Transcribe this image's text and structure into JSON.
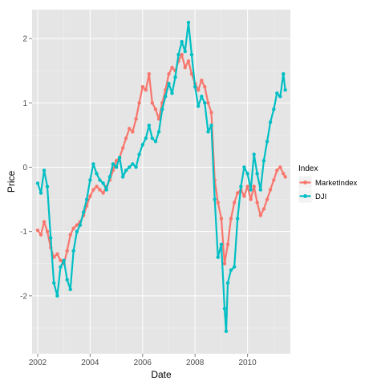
{
  "chart_data": {
    "type": "line",
    "x_type": "date",
    "xlabel": "Date",
    "ylabel": "Price",
    "xlim": [
      "2001-10-15",
      "2011-08-20"
    ],
    "ylim": [
      -2.9,
      2.45
    ],
    "x_ticks": [
      {
        "value": "2002-01-01",
        "label": "2002"
      },
      {
        "value": "2004-01-01",
        "label": "2004"
      },
      {
        "value": "2006-01-01",
        "label": "2006"
      },
      {
        "value": "2008-01-01",
        "label": "2008"
      },
      {
        "value": "2010-01-01",
        "label": "2010"
      }
    ],
    "y_ticks": [
      {
        "value": -2,
        "label": "-2"
      },
      {
        "value": -1,
        "label": "-1"
      },
      {
        "value": 0,
        "label": "0"
      },
      {
        "value": 1,
        "label": "1"
      },
      {
        "value": 2,
        "label": "2"
      }
    ],
    "grid": true,
    "markers": true,
    "legend": {
      "title": "Index",
      "position": "right"
    },
    "series": [
      {
        "name": "MarketIndex",
        "color": "#F8766D",
        "points": [
          [
            "2002-01-01",
            -0.98
          ],
          [
            "2002-02-15",
            -1.05
          ],
          [
            "2002-04-01",
            -0.85
          ],
          [
            "2002-05-15",
            -1.0
          ],
          [
            "2002-07-01",
            -1.25
          ],
          [
            "2002-08-15",
            -1.4
          ],
          [
            "2002-10-01",
            -1.35
          ],
          [
            "2002-11-15",
            -1.45
          ],
          [
            "2003-01-01",
            -1.5
          ],
          [
            "2003-02-15",
            -1.3
          ],
          [
            "2003-04-01",
            -1.05
          ],
          [
            "2003-05-15",
            -0.95
          ],
          [
            "2003-07-01",
            -0.9
          ],
          [
            "2003-08-15",
            -0.85
          ],
          [
            "2003-10-01",
            -0.75
          ],
          [
            "2003-11-15",
            -0.6
          ],
          [
            "2004-01-01",
            -0.45
          ],
          [
            "2004-02-15",
            -0.35
          ],
          [
            "2004-04-01",
            -0.3
          ],
          [
            "2004-05-15",
            -0.35
          ],
          [
            "2004-07-01",
            -0.4
          ],
          [
            "2004-08-15",
            -0.3
          ],
          [
            "2004-10-01",
            -0.2
          ],
          [
            "2004-11-15",
            -0.05
          ],
          [
            "2005-01-01",
            0.1
          ],
          [
            "2005-02-15",
            0.15
          ],
          [
            "2005-04-01",
            0.3
          ],
          [
            "2005-05-15",
            0.45
          ],
          [
            "2005-07-01",
            0.6
          ],
          [
            "2005-08-15",
            0.55
          ],
          [
            "2005-10-01",
            0.75
          ],
          [
            "2005-11-15",
            1.0
          ],
          [
            "2006-01-01",
            1.25
          ],
          [
            "2006-02-15",
            1.2
          ],
          [
            "2006-04-01",
            1.45
          ],
          [
            "2006-05-15",
            1.0
          ],
          [
            "2006-07-01",
            0.9
          ],
          [
            "2006-08-15",
            0.75
          ],
          [
            "2006-10-01",
            1.0
          ],
          [
            "2006-11-15",
            1.2
          ],
          [
            "2007-01-01",
            1.45
          ],
          [
            "2007-02-15",
            1.55
          ],
          [
            "2007-04-01",
            1.5
          ],
          [
            "2007-05-15",
            1.65
          ],
          [
            "2007-07-01",
            1.75
          ],
          [
            "2007-08-15",
            1.55
          ],
          [
            "2007-10-01",
            1.65
          ],
          [
            "2007-11-15",
            1.45
          ],
          [
            "2008-01-01",
            1.3
          ],
          [
            "2008-02-15",
            1.2
          ],
          [
            "2008-04-01",
            1.35
          ],
          [
            "2008-05-15",
            1.25
          ],
          [
            "2008-07-01",
            1.0
          ],
          [
            "2008-08-15",
            0.85
          ],
          [
            "2008-10-01",
            -0.2
          ],
          [
            "2008-11-15",
            -0.55
          ],
          [
            "2009-01-01",
            -0.8
          ],
          [
            "2009-02-15",
            -1.5
          ],
          [
            "2009-04-01",
            -1.2
          ],
          [
            "2009-05-15",
            -0.8
          ],
          [
            "2009-07-01",
            -0.55
          ],
          [
            "2009-08-15",
            -0.4
          ],
          [
            "2009-10-01",
            -0.35
          ],
          [
            "2009-11-15",
            -0.45
          ],
          [
            "2010-01-01",
            -0.3
          ],
          [
            "2010-02-15",
            -0.5
          ],
          [
            "2010-04-01",
            -0.3
          ],
          [
            "2010-05-15",
            -0.55
          ],
          [
            "2010-07-01",
            -0.75
          ],
          [
            "2010-08-15",
            -0.65
          ],
          [
            "2010-10-01",
            -0.5
          ],
          [
            "2010-11-15",
            -0.35
          ],
          [
            "2011-01-01",
            -0.2
          ],
          [
            "2011-02-15",
            -0.05
          ],
          [
            "2011-04-01",
            0.0
          ],
          [
            "2011-05-15",
            -0.1
          ],
          [
            "2011-06-10",
            -0.15
          ]
        ]
      },
      {
        "name": "DJI",
        "color": "#00BFC4",
        "points": [
          [
            "2002-01-01",
            -0.25
          ],
          [
            "2002-02-15",
            -0.4
          ],
          [
            "2002-04-01",
            -0.05
          ],
          [
            "2002-05-15",
            -0.3
          ],
          [
            "2002-07-01",
            -1.1
          ],
          [
            "2002-08-15",
            -1.8
          ],
          [
            "2002-10-01",
            -2.0
          ],
          [
            "2002-11-15",
            -1.55
          ],
          [
            "2003-01-01",
            -1.45
          ],
          [
            "2003-02-15",
            -1.75
          ],
          [
            "2003-04-01",
            -1.9
          ],
          [
            "2003-05-15",
            -1.3
          ],
          [
            "2003-07-01",
            -1.0
          ],
          [
            "2003-08-15",
            -0.9
          ],
          [
            "2003-10-01",
            -0.7
          ],
          [
            "2003-11-15",
            -0.5
          ],
          [
            "2004-01-01",
            -0.2
          ],
          [
            "2004-02-15",
            0.05
          ],
          [
            "2004-04-01",
            -0.1
          ],
          [
            "2004-05-15",
            -0.2
          ],
          [
            "2004-07-01",
            -0.25
          ],
          [
            "2004-08-15",
            -0.35
          ],
          [
            "2004-10-01",
            -0.15
          ],
          [
            "2004-11-15",
            0.05
          ],
          [
            "2005-01-01",
            0.0
          ],
          [
            "2005-02-15",
            0.15
          ],
          [
            "2005-04-01",
            -0.15
          ],
          [
            "2005-05-15",
            -0.05
          ],
          [
            "2005-07-01",
            0.0
          ],
          [
            "2005-08-15",
            0.05
          ],
          [
            "2005-10-01",
            0.0
          ],
          [
            "2005-11-15",
            0.2
          ],
          [
            "2006-01-01",
            0.35
          ],
          [
            "2006-02-15",
            0.45
          ],
          [
            "2006-04-01",
            0.65
          ],
          [
            "2006-05-15",
            0.45
          ],
          [
            "2006-07-01",
            0.4
          ],
          [
            "2006-08-15",
            0.55
          ],
          [
            "2006-10-01",
            0.9
          ],
          [
            "2006-11-15",
            1.1
          ],
          [
            "2007-01-01",
            1.3
          ],
          [
            "2007-02-15",
            1.15
          ],
          [
            "2007-04-01",
            1.4
          ],
          [
            "2007-05-15",
            1.75
          ],
          [
            "2007-07-01",
            1.95
          ],
          [
            "2007-08-15",
            1.8
          ],
          [
            "2007-10-01",
            2.25
          ],
          [
            "2007-11-15",
            1.75
          ],
          [
            "2008-01-01",
            1.25
          ],
          [
            "2008-02-15",
            0.95
          ],
          [
            "2008-04-01",
            1.1
          ],
          [
            "2008-05-15",
            1.0
          ],
          [
            "2008-07-01",
            0.55
          ],
          [
            "2008-08-15",
            0.65
          ],
          [
            "2008-10-01",
            -0.5
          ],
          [
            "2008-11-15",
            -1.4
          ],
          [
            "2009-01-01",
            -1.2
          ],
          [
            "2009-02-15",
            -2.2
          ],
          [
            "2009-03-09",
            -2.55
          ],
          [
            "2009-04-01",
            -1.8
          ],
          [
            "2009-05-15",
            -1.6
          ],
          [
            "2009-07-01",
            -1.55
          ],
          [
            "2009-08-15",
            -0.8
          ],
          [
            "2009-10-01",
            -0.3
          ],
          [
            "2009-11-15",
            0.0
          ],
          [
            "2010-01-01",
            -0.1
          ],
          [
            "2010-02-15",
            -0.35
          ],
          [
            "2010-04-01",
            0.2
          ],
          [
            "2010-05-15",
            -0.1
          ],
          [
            "2010-07-01",
            -0.35
          ],
          [
            "2010-08-15",
            0.1
          ],
          [
            "2010-10-01",
            0.4
          ],
          [
            "2010-11-15",
            0.7
          ],
          [
            "2011-01-01",
            0.9
          ],
          [
            "2011-02-15",
            1.15
          ],
          [
            "2011-04-01",
            1.1
          ],
          [
            "2011-05-15",
            1.45
          ],
          [
            "2011-06-10",
            1.2
          ]
        ]
      }
    ]
  }
}
